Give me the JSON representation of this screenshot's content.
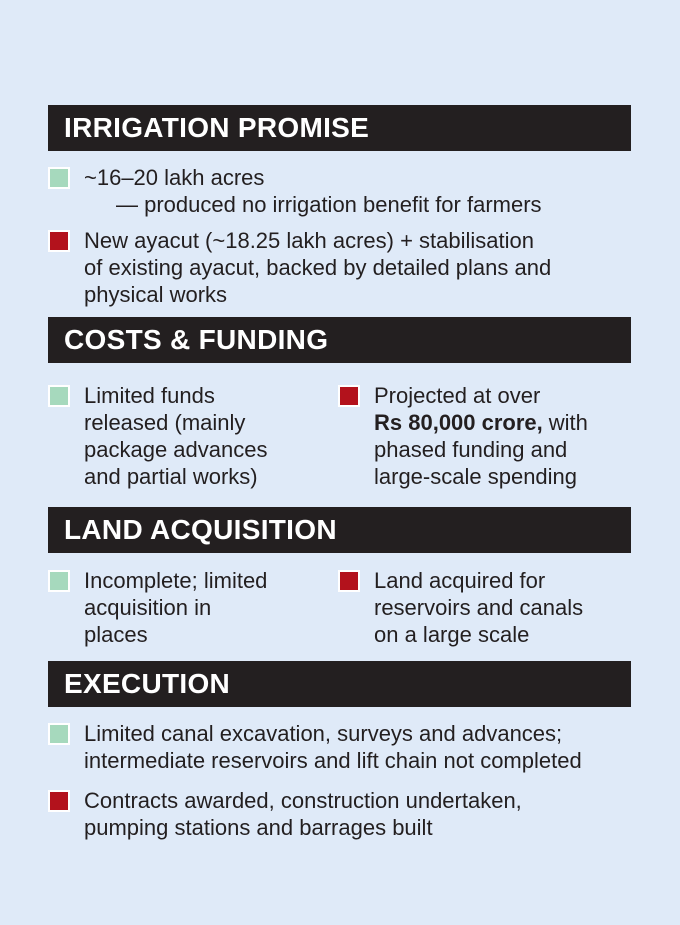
{
  "sections": [
    {
      "title": "IRRIGATION PROMISE",
      "items": [
        {
          "color": "#a6d9bd",
          "lines": [
            "~16–20 lakh acres",
            "— produced no irrigation benefit for farmers"
          ]
        },
        {
          "color": "#b3121c",
          "lines": [
            "New ayacut (~18.25 lakh acres) + stabilisation",
            "of existing ayacut, backed by detailed plans and",
            "physical works"
          ]
        }
      ]
    },
    {
      "title": "COSTS & FUNDING",
      "items": [
        {
          "color": "#a6d9bd",
          "lines": [
            "Limited funds",
            "released (mainly",
            "package advances",
            "and partial works)"
          ]
        },
        {
          "color": "#b3121c",
          "lines": [
            "Projected at over",
            {
              "bold": "Rs 80,000 crore,",
              "rest": "with"
            },
            "phased funding and",
            "large-scale spending"
          ]
        }
      ]
    },
    {
      "title": "LAND ACQUISITION",
      "items": [
        {
          "color": "#a6d9bd",
          "lines": [
            "Incomplete; limited",
            "acquisition in",
            "places"
          ]
        },
        {
          "color": "#b3121c",
          "lines": [
            "Land acquired for",
            "reservoirs and canals",
            "on a large scale"
          ]
        }
      ]
    },
    {
      "title": "EXECUTION",
      "items": [
        {
          "color": "#a6d9bd",
          "lines": [
            "Limited canal excavation, surveys and advances;",
            "intermediate reservoirs and lift chain not completed"
          ]
        },
        {
          "color": "#b3121c",
          "lines": [
            "Contracts awarded, construction undertaken,",
            "pumping stations and barrages built"
          ]
        }
      ]
    }
  ]
}
